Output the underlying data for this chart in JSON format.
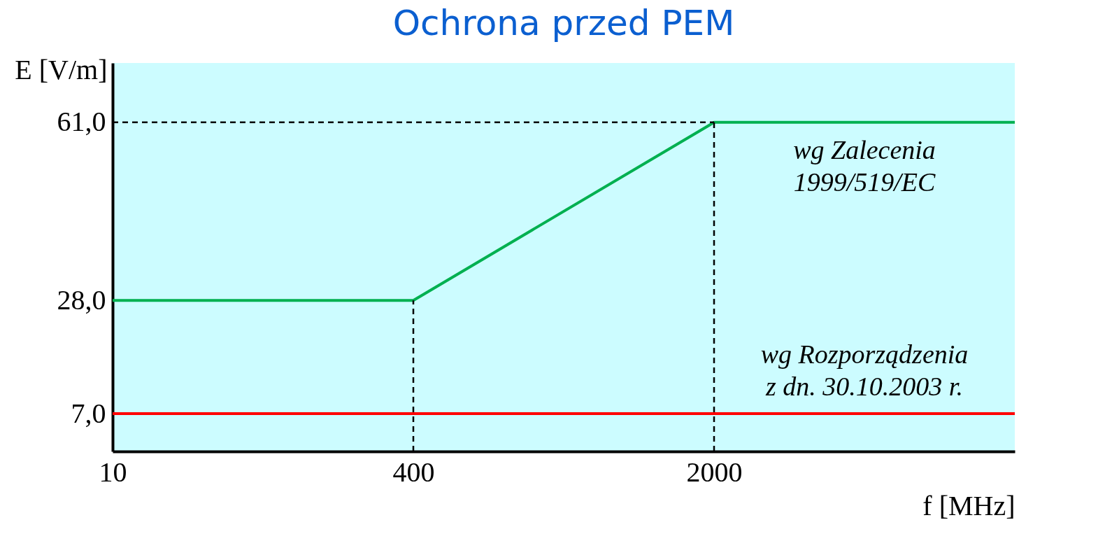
{
  "chart_data": {
    "type": "line",
    "title": "Ochrona przed PEM",
    "xlabel": "f [MHz]",
    "ylabel": "E [V/m]",
    "categories": [
      "10",
      "400",
      "2000",
      null
    ],
    "series": [
      {
        "name": "wg Zalecenia 1999/519/EC",
        "color": "#00b050",
        "values": [
          28,
          28,
          61,
          61
        ]
      },
      {
        "name": "wg Rozporządzenia z dn. 30.10.2003 r.",
        "color": "#ff0000",
        "values": [
          7,
          7,
          7,
          7
        ]
      }
    ],
    "ylim": [
      0,
      72
    ],
    "yticks": [
      {
        "value": 7,
        "label": "7,0"
      },
      {
        "value": 28,
        "label": "28,0"
      },
      {
        "value": 61,
        "label": "61,0"
      }
    ],
    "ref_lines": [
      {
        "axis": "y",
        "value": 61,
        "line_style": "dashed"
      },
      {
        "axis": "x",
        "value": "400",
        "line_style": "dashed"
      },
      {
        "axis": "x",
        "value": "2000",
        "line_style": "dashed"
      }
    ],
    "grid": false,
    "legend": false,
    "marker": "none",
    "line_style": "solid"
  }
}
